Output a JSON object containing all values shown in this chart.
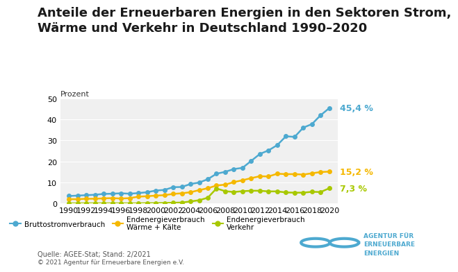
{
  "title": "Anteile der Erneuerbaren Energien in den Sektoren Strom,\nWärme und Verkehr in Deutschland 1990–2020",
  "ylabel": "Prozent",
  "source": "Quelle: AGEE-Stat; Stand: 2/2021",
  "copyright": "© 2021 Agentur für Erneuerbare Energien e.V.",
  "years": [
    1990,
    1991,
    1992,
    1993,
    1994,
    1995,
    1996,
    1997,
    1998,
    1999,
    2000,
    2001,
    2002,
    2003,
    2004,
    2005,
    2006,
    2007,
    2008,
    2009,
    2010,
    2011,
    2012,
    2013,
    2014,
    2015,
    2016,
    2017,
    2018,
    2019,
    2020
  ],
  "strom": [
    3.6,
    3.8,
    4.0,
    4.2,
    4.6,
    4.7,
    4.9,
    4.7,
    5.0,
    5.4,
    6.2,
    6.5,
    7.8,
    7.9,
    9.3,
    10.0,
    11.6,
    14.2,
    15.1,
    16.4,
    17.0,
    20.3,
    23.6,
    25.3,
    27.8,
    32.0,
    31.7,
    36.1,
    37.8,
    42.0,
    45.4
  ],
  "waerme": [
    2.1,
    2.1,
    2.3,
    2.3,
    2.5,
    2.6,
    2.4,
    2.6,
    3.3,
    3.5,
    3.8,
    4.0,
    4.6,
    4.9,
    5.4,
    6.4,
    7.3,
    8.6,
    9.0,
    10.2,
    11.1,
    12.1,
    13.0,
    12.9,
    14.2,
    14.0,
    14.0,
    13.8,
    14.4,
    15.0,
    15.2
  ],
  "verkehr": [
    0.1,
    0.1,
    0.1,
    0.1,
    0.1,
    0.1,
    0.1,
    0.1,
    0.1,
    0.2,
    0.2,
    0.3,
    0.4,
    0.5,
    1.0,
    1.6,
    2.8,
    7.2,
    5.9,
    5.5,
    5.9,
    6.1,
    6.1,
    5.8,
    5.8,
    5.3,
    5.2,
    5.2,
    5.6,
    5.5,
    7.3
  ],
  "strom_color": "#4DA9D0",
  "waerme_color": "#F5B800",
  "verkehr_color": "#A8C800",
  "label_strom": "45,4 %",
  "label_waerme": "15,2 %",
  "label_verkehr": "7,3 %",
  "legend_strom": "Bruttostromverbrauch",
  "legend_waerme": "Endenergieverbrauch\nWärme + Kälte",
  "legend_verkehr": "Endenergieverbrauch\nVerkehr",
  "ylim": [
    0,
    50
  ],
  "yticks": [
    0,
    10,
    20,
    30,
    40,
    50
  ],
  "background_color": "#EBEBEB",
  "plot_bg_color": "#F0F0F0",
  "title_color": "#1A1A1A",
  "title_fontsize": 13
}
